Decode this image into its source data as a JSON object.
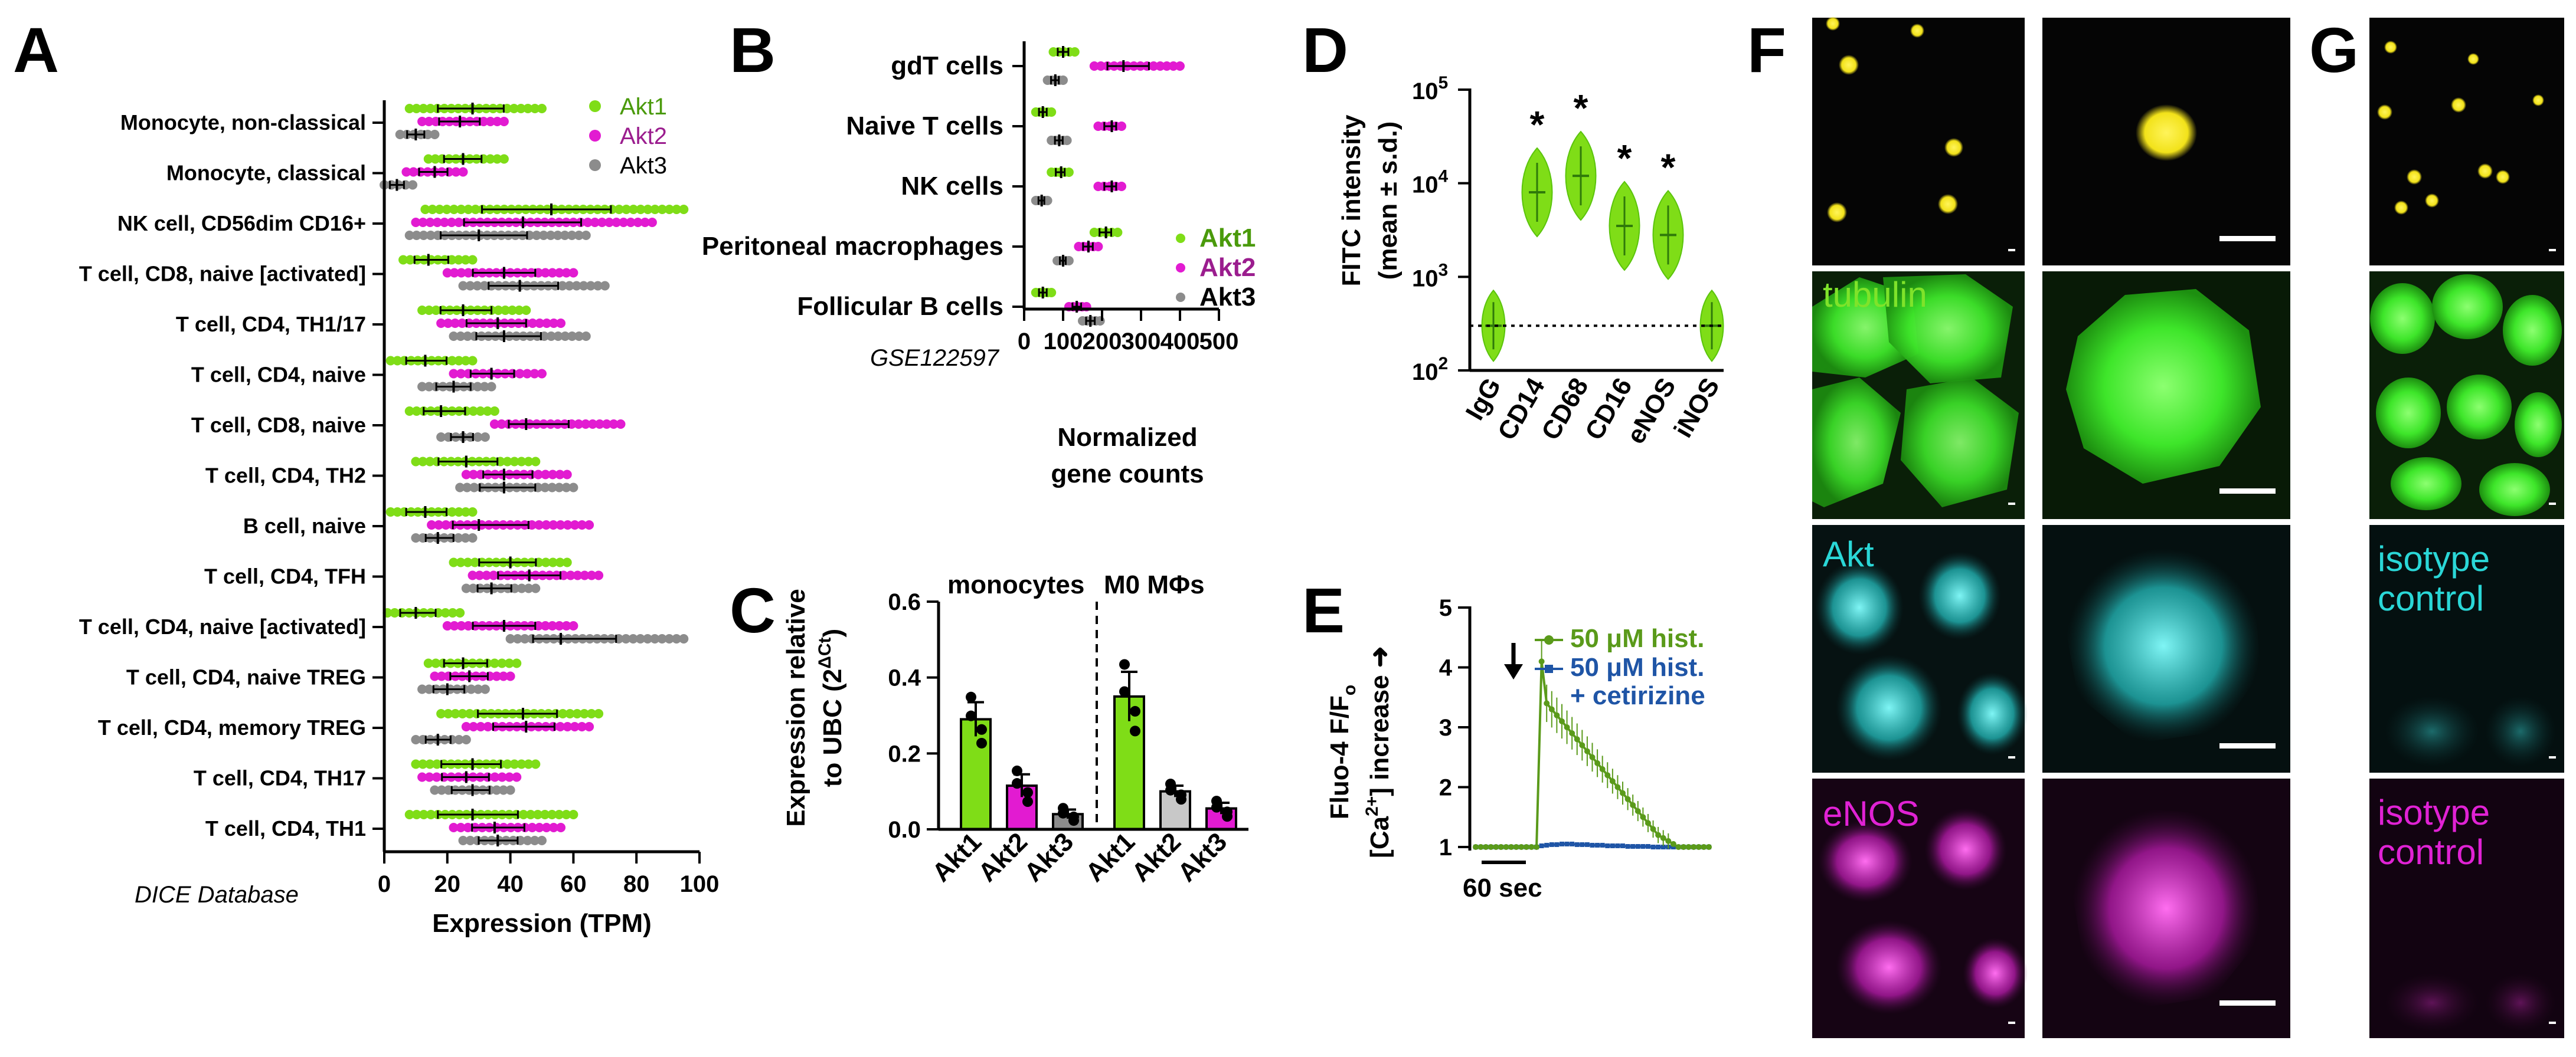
{
  "panel_letters": [
    "A",
    "B",
    "C",
    "D",
    "E",
    "F",
    "G"
  ],
  "colors": {
    "akt1": "#7fdd17",
    "akt2": "#e21bd1",
    "akt3": "#8c8c8c",
    "akt1_text": "#4a9a0b",
    "akt2_text": "#9b1d8e",
    "ctrl": "#1f55a6",
    "green_img": "#3ee62a",
    "yellow_img": "#f2e21a",
    "cyan_img": "#2ad7d7",
    "magenta_img": "#e022d4"
  },
  "chart_data": [
    {
      "type": "scatter",
      "panel": "A",
      "note": "DICE Database",
      "xlabel": "Expression (TPM)",
      "xlim": [
        0,
        100
      ],
      "xticks": [
        "0",
        "20",
        "40",
        "60",
        "80",
        "100"
      ],
      "legend": [
        "Akt1",
        "Akt2",
        "Akt3"
      ],
      "categories": [
        "Monocyte, non-classical",
        "Monocyte, classical",
        "NK cell, CD56dim CD16+",
        "T cell, CD8, naive [activated]",
        "T cell, CD4, TH1/17",
        "T cell, CD4, naive",
        "T cell, CD8, naive",
        "T cell, CD4, TH2",
        "B cell, naive",
        "T cell, CD4, TFH",
        "T cell, CD4, naive [activated]",
        "T cell, CD4, naive TREG",
        "T cell, CD4, memory TREG",
        "T cell, CD4, TH17",
        "T cell, CD4, TH1"
      ],
      "series": [
        {
          "name": "Akt1",
          "ranges": [
            [
              8,
              50
            ],
            [
              14,
              38
            ],
            [
              13,
              95
            ],
            [
              6,
              28
            ],
            [
              12,
              45
            ],
            [
              2,
              28
            ],
            [
              8,
              35
            ],
            [
              10,
              48
            ],
            [
              2,
              28
            ],
            [
              22,
              58
            ],
            [
              1,
              24
            ],
            [
              14,
              42
            ],
            [
              18,
              68
            ],
            [
              10,
              48
            ],
            [
              8,
              60
            ]
          ],
          "means": [
            28,
            25,
            53,
            14,
            25,
            13,
            18,
            26,
            13,
            40,
            10,
            25,
            44,
            28,
            28
          ]
        },
        {
          "name": "Akt2",
          "ranges": [
            [
              12,
              38
            ],
            [
              7,
              25
            ],
            [
              10,
              85
            ],
            [
              20,
              60
            ],
            [
              18,
              56
            ],
            [
              22,
              50
            ],
            [
              35,
              75
            ],
            [
              26,
              58
            ],
            [
              15,
              65
            ],
            [
              28,
              68
            ],
            [
              20,
              60
            ],
            [
              16,
              40
            ],
            [
              26,
              65
            ],
            [
              12,
              42
            ],
            [
              22,
              56
            ]
          ],
          "means": [
            24,
            16,
            44,
            38,
            36,
            34,
            45,
            38,
            30,
            46,
            38,
            27,
            45,
            26,
            35
          ]
        },
        {
          "name": "Akt3",
          "ranges": [
            [
              5,
              16
            ],
            [
              0,
              9
            ],
            [
              8,
              64
            ],
            [
              25,
              70
            ],
            [
              22,
              64
            ],
            [
              12,
              34
            ],
            [
              18,
              32
            ],
            [
              24,
              60
            ],
            [
              10,
              28
            ],
            [
              26,
              48
            ],
            [
              40,
              95
            ],
            [
              12,
              32
            ],
            [
              10,
              26
            ],
            [
              16,
              40
            ],
            [
              25,
              50
            ]
          ],
          "means": [
            10,
            4,
            30,
            43,
            38,
            22,
            25,
            38,
            17,
            34,
            56,
            20,
            17,
            28,
            36
          ]
        }
      ]
    },
    {
      "type": "scatter",
      "panel": "B",
      "note": "GSE122597",
      "xlabel": "Normalized gene counts",
      "xlim": [
        0,
        500
      ],
      "xticks": [
        "0",
        "100",
        "200",
        "300",
        "400",
        "500"
      ],
      "legend": [
        "Akt1",
        "Akt2",
        "Akt3"
      ],
      "categories": [
        "gdT cells",
        "Naive T cells",
        "NK cells",
        "Peritoneal macrophages",
        "Follicular B cells"
      ],
      "series": [
        {
          "name": "Akt1",
          "ranges": [
            [
              75,
              130
            ],
            [
              30,
              70
            ],
            [
              70,
              115
            ],
            [
              180,
              240
            ],
            [
              30,
              70
            ]
          ],
          "means": [
            100,
            48,
            95,
            210,
            48
          ]
        },
        {
          "name": "Akt2",
          "ranges": [
            [
              180,
              400
            ],
            [
              190,
              250
            ],
            [
              190,
              250
            ],
            [
              140,
              190
            ],
            [
              115,
              160
            ]
          ],
          "means": [
            255,
            225,
            225,
            165,
            135
          ]
        },
        {
          "name": "Akt3",
          "ranges": [
            [
              60,
              100
            ],
            [
              70,
              110
            ],
            [
              30,
              60
            ],
            [
              85,
              115
            ],
            [
              150,
              195
            ]
          ],
          "means": [
            80,
            90,
            45,
            100,
            170
          ]
        }
      ]
    },
    {
      "type": "bar",
      "panel": "C",
      "ylabel": "Expression relative to UBC (2",
      "ylabel_sup": "ΔCt",
      "ylabel_close": ")",
      "ylim": [
        0,
        0.6
      ],
      "yticks": [
        "0.0",
        "0.2",
        "0.4",
        "0.6"
      ],
      "groups": [
        "monocytes",
        "M0 MΦs"
      ],
      "categories": [
        "Akt1",
        "Akt2",
        "Akt3",
        "Akt1",
        "Akt2",
        "Akt3"
      ],
      "values": [
        0.29,
        0.115,
        0.04,
        0.35,
        0.1,
        0.055
      ],
      "errors": [
        0.045,
        0.03,
        0.012,
        0.065,
        0.015,
        0.015
      ]
    },
    {
      "type": "violin",
      "panel": "D",
      "ylabel": "FITC intensity",
      "ylabel2": "(mean ± s.d.)",
      "yscale": "log",
      "ylim_exp": [
        2,
        5
      ],
      "yticks_base": "10",
      "yticks_exp": [
        "2",
        "3",
        "4",
        "5"
      ],
      "categories": [
        "IgG",
        "CD14",
        "CD68",
        "CD16",
        "eNOS",
        "iNOS"
      ],
      "values": [
        300,
        8000,
        12000,
        3500,
        2800,
        300
      ],
      "significance": [
        "",
        "*",
        "*",
        "*",
        "*",
        ""
      ],
      "reference_line": 300
    },
    {
      "type": "line",
      "panel": "E",
      "ylabel": "Fluo-4 F/F",
      "ylabel_sub": "o",
      "ylabel2": "[Ca",
      "ylabel2_sup": "2+",
      "ylabel2_rest": "] increase ➜",
      "ylim": [
        1,
        5
      ],
      "yticks": [
        "1",
        "2",
        "3",
        "4",
        "5"
      ],
      "scalebar": "60 sec",
      "series": [
        {
          "name": "50 μM hist.",
          "values": [
            1.0,
            1.0,
            1.0,
            1.0,
            1.0,
            1.0,
            1.0,
            1.0,
            1.0,
            1.0,
            1.0,
            1.0,
            1.0,
            4.1,
            3.4,
            3.3,
            3.2,
            3.1,
            3.0,
            2.9,
            2.8,
            2.7,
            2.6,
            2.5,
            2.4,
            2.3,
            2.2,
            2.1,
            2.0,
            1.9,
            1.8,
            1.7,
            1.6,
            1.5,
            1.4,
            1.3,
            1.2,
            1.15,
            1.1,
            1.05,
            1.0,
            1.0,
            1.0,
            1.0,
            1.0,
            1.0,
            1.0
          ]
        },
        {
          "name": "50 μM hist.\n+ cetirizine",
          "name_line1": "50 μM hist.",
          "name_line2": "+ cetirizine",
          "values": [
            1.0,
            1.0,
            1.0,
            1.0,
            1.0,
            1.0,
            1.0,
            1.0,
            1.0,
            1.0,
            1.0,
            1.0,
            1.0,
            1.02,
            1.03,
            1.04,
            1.04,
            1.05,
            1.05,
            1.05,
            1.04,
            1.04,
            1.04,
            1.03,
            1.03,
            1.03,
            1.02,
            1.02,
            1.02,
            1.02,
            1.01,
            1.01,
            1.01,
            1.01,
            1.01,
            1.0,
            1.0,
            1.0,
            1.0,
            1.0,
            1.0,
            1.0,
            1.0,
            1.0,
            1.0,
            1.0,
            1.0
          ]
        }
      ]
    }
  ],
  "images": {
    "F": {
      "labels": [
        "tubulin",
        "Akt",
        "eNOS"
      ]
    },
    "G": {
      "label_cyan_1": "isotype",
      "label_cyan_2": "control",
      "label_mag_1": "isotype",
      "label_mag_2": "control"
    }
  }
}
